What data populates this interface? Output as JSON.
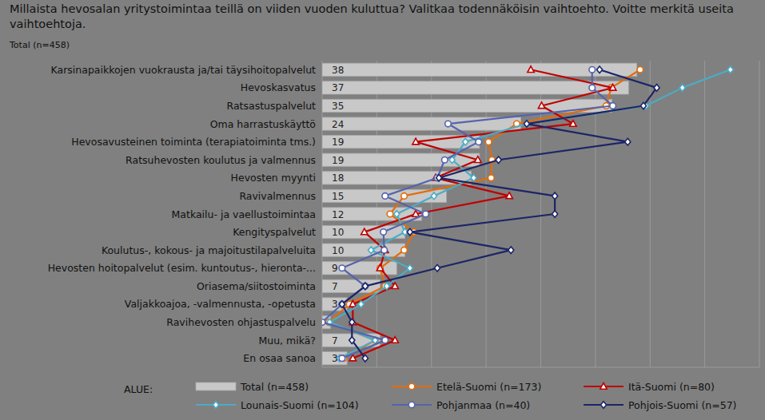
{
  "chart_data": {
    "type": "bar",
    "orientation": "horizontal",
    "title": "Millaista hevosalan yritystoimintaa teillä on viiden vuoden kuluttua? Valitkaa todennäköisin vaihtoehto. Voitte merkitä useita vaihtoehtoja.",
    "subtitle": "Total (n=458)",
    "legend_title": "ALUE:",
    "categories": [
      "Karsinapaikkojen vuokrausta ja/tai täysihoitopalvelut",
      "Hevoskasvatus",
      "Ratsastuspalvelut",
      "Oma harrastuskäyttö",
      "Hevosavusteinen toiminta (terapiatoiminta tms.)",
      "Ratsuhevosten koulutus ja valmennus",
      "Hevosten myynti",
      "Ravivalmennus",
      "Matkailu- ja vaellustoimintaa",
      "Kengityspalvelut",
      "Koulutus-, kokous- ja majoitustilapalveluita",
      "Hevosten hoitopalvelut (esim. kuntoutus-, hieronta-...",
      "Oriasema/siitostoiminta",
      "Valjakkoajoa, -valmennusta, -opetusta",
      "Ravihevosten ohjastuspalvelu",
      "Muu, mikä?",
      "En osaa sanoa"
    ],
    "xlim": [
      0,
      52.8
    ],
    "xticks": [
      0,
      6.6,
      13.2,
      19.8,
      26.4,
      33,
      39.6,
      46.2,
      52.8
    ],
    "grid": true,
    "tick_labels": "y",
    "legend": "bottom",
    "series": [
      {
        "name": "Total (n=458)",
        "type": "bar",
        "color": "#c8c8c8",
        "data_labels": true,
        "values": [
          38,
          37,
          35,
          24,
          19,
          19,
          18,
          15,
          12,
          10,
          10,
          9,
          7,
          3,
          1,
          7,
          3
        ],
        "value_labels": [
          "38",
          "37",
          "35",
          "24",
          "19",
          "19",
          "18",
          "15",
          "12",
          "10",
          "10",
          "9",
          "7",
          "3",
          null,
          "7",
          "3"
        ]
      },
      {
        "name": "Etelä-Suomi (n=173)",
        "type": "line",
        "color": "#e36c0a",
        "marker": "circle",
        "values": [
          38.4,
          34.9,
          34.3,
          23.5,
          20.1,
          20.5,
          20.4,
          9.9,
          8.2,
          11.1,
          9.9,
          7.0,
          7.6,
          3.3,
          0.8,
          6.4,
          2.6
        ]
      },
      {
        "name": "Itä-Suomi (n=80)",
        "type": "line",
        "color": "#c00000",
        "marker": "triangle",
        "values": [
          25.2,
          35.1,
          26.5,
          30.3,
          11.3,
          18.8,
          13.7,
          22.6,
          11.3,
          5.1,
          7.6,
          7.0,
          8.8,
          3.7,
          3.7,
          8.8,
          3.7
        ]
      },
      {
        "name": "Lounais-Suomi (n=104)",
        "type": "line",
        "color": "#4bacc6",
        "marker": "diamond",
        "values": [
          49.3,
          43.5,
          39.1,
          24.7,
          17.3,
          15.7,
          18.3,
          13.5,
          9.0,
          10.0,
          5.9,
          10.6,
          7.8,
          4.7,
          0.9,
          6.4,
          2.1
        ]
      },
      {
        "name": "Pohjanmaa (n=40)",
        "type": "line",
        "color": "#5563ad",
        "marker": "circle",
        "values": [
          32.6,
          32.6,
          35.1,
          15.2,
          18.9,
          14.8,
          13.9,
          7.6,
          12.5,
          7.4,
          7.5,
          2.4,
          5.2,
          2.4,
          0,
          7.6,
          2.4
        ]
      },
      {
        "name": "Pohjois-Suomi (n=57)",
        "type": "line",
        "color": "#1c2566",
        "marker": "diamond",
        "values": [
          33.5,
          40.4,
          38.8,
          24.7,
          36.9,
          21.3,
          14.1,
          28.1,
          28.1,
          10.6,
          22.8,
          13.9,
          5.2,
          2.4,
          3.6,
          3.6,
          5.2
        ]
      }
    ]
  }
}
